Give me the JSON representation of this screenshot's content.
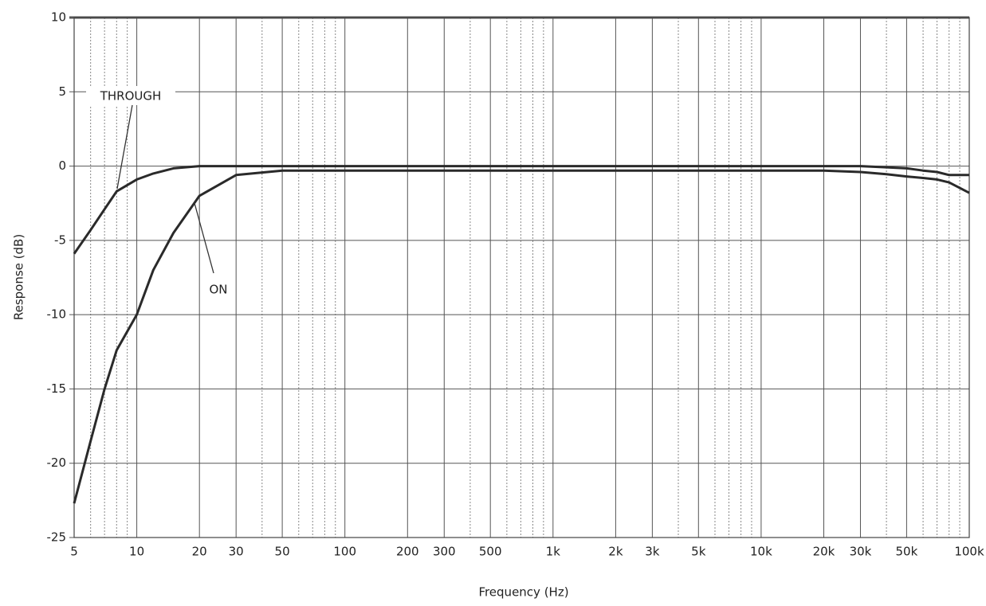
{
  "chart_data": {
    "type": "line",
    "xlabel": "Frequency (Hz)",
    "ylabel": "Response (dB)",
    "x_scale": "log",
    "x": [
      5,
      6,
      7,
      8,
      10,
      12,
      15,
      20,
      30,
      50,
      100,
      1000,
      10000,
      20000,
      30000,
      40000,
      50000,
      60000,
      70000,
      80000,
      100000
    ],
    "series": [
      {
        "name": "THROUGH",
        "color": "#2a2a2a",
        "values": [
          -5.9,
          -4.3,
          -2.9,
          -1.7,
          -0.9,
          -0.5,
          -0.15,
          0,
          0,
          0,
          0,
          0,
          0,
          0,
          0,
          -0.08,
          -0.15,
          -0.3,
          -0.4,
          -0.6,
          -0.6
        ]
      },
      {
        "name": "ON",
        "color": "#2a2a2a",
        "values": [
          -22.7,
          -18.5,
          -15,
          -12.4,
          -10,
          -7,
          -4.5,
          -2,
          -0.6,
          -0.3,
          -0.3,
          -0.3,
          -0.3,
          -0.3,
          -0.4,
          -0.55,
          -0.7,
          -0.8,
          -0.9,
          -1.1,
          -1.8
        ]
      }
    ],
    "annotations": [
      "THROUGH",
      "ON"
    ],
    "xlim": [
      5,
      100000
    ],
    "ylim": [
      -25,
      10
    ],
    "xticks": [
      5,
      10,
      20,
      30,
      50,
      100,
      200,
      300,
      500,
      {
        "value": 1000,
        "label": "1k"
      },
      {
        "value": 2000,
        "label": "2k"
      },
      {
        "value": 3000,
        "label": "3k"
      },
      {
        "value": 5000,
        "label": "5k"
      },
      {
        "value": 10000,
        "label": "10k"
      },
      {
        "value": 20000,
        "label": "20k"
      },
      {
        "value": 30000,
        "label": "30k"
      },
      {
        "value": 50000,
        "label": "50k"
      },
      {
        "value": 100000,
        "label": "100k"
      }
    ],
    "x_minor_gridlines": [
      6,
      7,
      8,
      9,
      40,
      60,
      70,
      80,
      90,
      400,
      600,
      700,
      800,
      900,
      4000,
      6000,
      7000,
      8000,
      9000,
      40000,
      60000,
      70000,
      80000,
      90000
    ],
    "yticks": [
      10,
      5,
      0,
      -5,
      -10,
      -15,
      -20,
      -25
    ],
    "grid": true
  }
}
